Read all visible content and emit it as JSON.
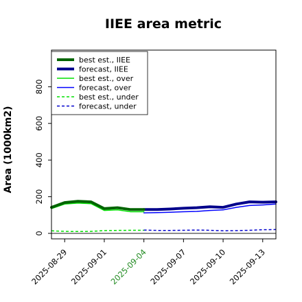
{
  "chart_data": {
    "type": "line",
    "title": "IIEE area metric",
    "ylabel": "Area (1000km2)",
    "xlabel": "",
    "ylim": [
      -30,
      1000
    ],
    "xlim": [
      "2025-08-28",
      "2025-09-14"
    ],
    "yticks": [
      0,
      200,
      400,
      600,
      800
    ],
    "xtick_labels": [
      {
        "label": "2025-08-29",
        "color": "#000000"
      },
      {
        "label": "2025-09-01",
        "color": "#000000"
      },
      {
        "label": "2025-09-04",
        "color": "#228B22"
      },
      {
        "label": "2025-09-07",
        "color": "#000000"
      },
      {
        "label": "2025-09-10",
        "color": "#000000"
      },
      {
        "label": "2025-09-13",
        "color": "#000000"
      }
    ],
    "legend_position": "upper left",
    "grid": false,
    "zero_line": true,
    "series": [
      {
        "name": "best est., IIEE",
        "color": "#006400",
        "style": "solid",
        "weight": "thick",
        "x": [
          "2025-08-28",
          "2025-08-29",
          "2025-08-30",
          "2025-08-31",
          "2025-09-01",
          "2025-09-02",
          "2025-09-03",
          "2025-09-04"
        ],
        "y": [
          142,
          168,
          175,
          172,
          135,
          140,
          130,
          130
        ]
      },
      {
        "name": "forecast, IIEE",
        "color": "#00008B",
        "style": "solid",
        "weight": "thick",
        "x": [
          "2025-09-04",
          "2025-09-05",
          "2025-09-06",
          "2025-09-07",
          "2025-09-08",
          "2025-09-09",
          "2025-09-10",
          "2025-09-11",
          "2025-09-12",
          "2025-09-13",
          "2025-09-14"
        ],
        "y": [
          130,
          130,
          133,
          137,
          140,
          145,
          142,
          160,
          172,
          170,
          172
        ]
      },
      {
        "name": "best est., over",
        "color": "#00E000",
        "style": "solid",
        "weight": "thin",
        "x": [
          "2025-08-28",
          "2025-08-29",
          "2025-08-30",
          "2025-08-31",
          "2025-09-01",
          "2025-09-02",
          "2025-09-03",
          "2025-09-04"
        ],
        "y": [
          135,
          160,
          165,
          162,
          125,
          128,
          118,
          118
        ]
      },
      {
        "name": "forecast, over",
        "color": "#0000FF",
        "style": "solid",
        "weight": "thin",
        "x": [
          "2025-09-04",
          "2025-09-05",
          "2025-09-06",
          "2025-09-07",
          "2025-09-08",
          "2025-09-09",
          "2025-09-10",
          "2025-09-11",
          "2025-09-12",
          "2025-09-13",
          "2025-09-14"
        ],
        "y": [
          112,
          113,
          115,
          118,
          120,
          125,
          128,
          142,
          152,
          155,
          160
        ]
      },
      {
        "name": "best est., under",
        "color": "#00E000",
        "style": "dashed",
        "weight": "thin",
        "x": [
          "2025-08-28",
          "2025-08-29",
          "2025-08-30",
          "2025-08-31",
          "2025-09-01",
          "2025-09-02",
          "2025-09-03",
          "2025-09-04"
        ],
        "y": [
          14,
          11,
          10,
          11,
          15,
          16,
          17,
          17
        ]
      },
      {
        "name": "forecast, under",
        "color": "#0000CD",
        "style": "dashed",
        "weight": "thin",
        "x": [
          "2025-09-04",
          "2025-09-05",
          "2025-09-06",
          "2025-09-07",
          "2025-09-08",
          "2025-09-09",
          "2025-09-10",
          "2025-09-11",
          "2025-09-12",
          "2025-09-13",
          "2025-09-14"
        ],
        "y": [
          18,
          16,
          16,
          17,
          18,
          17,
          14,
          15,
          17,
          20,
          21
        ]
      }
    ]
  }
}
